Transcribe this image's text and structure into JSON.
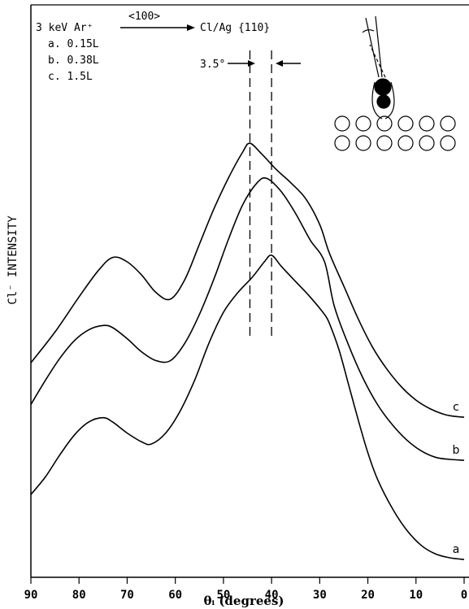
{
  "chart_data": {
    "type": "line",
    "xlabel": "θᵢ (degrees)",
    "ylabel": "Cl⁻ INTENSITY",
    "xlim": [
      90,
      0
    ],
    "x_reversed": true,
    "x_ticks": [
      "90",
      "80",
      "70",
      "60",
      "50",
      "40",
      "30",
      "20",
      "10",
      "0"
    ],
    "ylim": [
      0,
      100
    ],
    "y_ticks": [],
    "grid": false,
    "header": {
      "beam": "3 keV Ar⁺",
      "direction": "<100>",
      "target": "Cl/Ag {110}"
    },
    "legend": [
      "a. 0.15L",
      "b. 0.38L",
      "c. 1.5L"
    ],
    "annotation": {
      "text": "3.5°",
      "peak_a_deg": 40,
      "peak_c_deg": 44.5
    },
    "series": [
      {
        "name": "c",
        "x": [
          90,
          85,
          80,
          76,
          73,
          70,
          67,
          64,
          61,
          58,
          55,
          52,
          49,
          46,
          44.5,
          42,
          39,
          36,
          33,
          30,
          28,
          25,
          22,
          19,
          16,
          13,
          10,
          7,
          4,
          2,
          0
        ],
        "y": [
          47,
          54,
          62,
          68,
          71,
          70,
          67,
          63,
          61.5,
          66,
          74,
          82,
          89,
          95,
          97,
          94.5,
          91,
          88,
          84.5,
          78.5,
          72,
          64.5,
          57,
          50.5,
          45.5,
          41.5,
          38.5,
          36.5,
          35.2,
          34.8,
          34.6
        ]
      },
      {
        "name": "b",
        "x": [
          90,
          87,
          84,
          81,
          78,
          75,
          73,
          70,
          67,
          64,
          61,
          58,
          55,
          52,
          49,
          46,
          43,
          41,
          38,
          35,
          32,
          29,
          27,
          24,
          21,
          18,
          15,
          12,
          9,
          6,
          3,
          0
        ],
        "y": [
          37.5,
          43,
          48,
          52,
          54.5,
          55.5,
          55,
          52.5,
          49.5,
          47.5,
          47.5,
          51.5,
          58,
          66,
          75,
          83,
          88,
          89,
          86,
          81,
          75,
          70,
          60,
          51,
          43.5,
          37.5,
          33,
          29.5,
          27,
          25.5,
          25,
          24.8
        ]
      },
      {
        "name": "a",
        "x": [
          90,
          87,
          84,
          81,
          78,
          75,
          73,
          70,
          67,
          65,
          62,
          59,
          56,
          53,
          50,
          47,
          44,
          41.5,
          40,
          38,
          35,
          32,
          29,
          28,
          26,
          24,
          22,
          20,
          18,
          15,
          12,
          9,
          6,
          3,
          0
        ],
        "y": [
          17,
          21,
          26,
          30.5,
          33.5,
          34.5,
          33.5,
          31,
          29,
          28.5,
          31,
          36,
          43,
          51.5,
          58.5,
          63,
          66.5,
          70,
          71.5,
          69,
          65.5,
          62,
          58,
          56,
          50,
          42,
          34,
          26.5,
          20.5,
          14,
          9,
          5.5,
          3.5,
          2.6,
          2.2
        ]
      }
    ]
  }
}
